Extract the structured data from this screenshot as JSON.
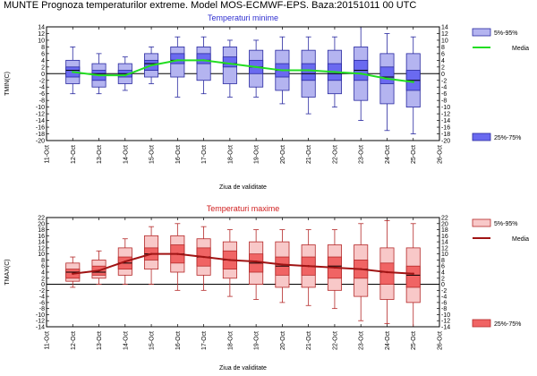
{
  "title": "MUNTE  Prognoza temperaturilor extreme.  Model MOS-ECMWF-EPS. Baza:20151011 00 UTC",
  "chart_data": [
    {
      "type": "box",
      "title": "Temperaturi minime",
      "ylabel": "TMIN(C)",
      "xlabel": "Ziua de validitate",
      "ylim": [
        -20,
        14
      ],
      "yticks": [
        14,
        12,
        10,
        8,
        6,
        4,
        2,
        0,
        -2,
        -4,
        -6,
        -8,
        -10,
        -12,
        -14,
        -16,
        -18,
        -20
      ],
      "categories": [
        "11-Oct",
        "12-Oct",
        "13-Oct",
        "14-Oct",
        "15-Oct",
        "16-Oct",
        "17-Oct",
        "18-Oct",
        "19-Oct",
        "20-Oct",
        "21-Oct",
        "22-Oct",
        "23-Oct",
        "24-Oct",
        "25-Oct",
        "26-Oct"
      ],
      "colors": {
        "box": "#6a6af0",
        "box_edge": "#2828a0",
        "light": "#b4b4f0",
        "mean": "#22dd22"
      },
      "legend": {
        "band_label": "5%-95%",
        "mean_label": "Media",
        "iqr_label": "25%-75%"
      },
      "days": [
        "12-Oct",
        "13-Oct",
        "14-Oct",
        "15-Oct",
        "16-Oct",
        "17-Oct",
        "18-Oct",
        "19-Oct",
        "20-Oct",
        "21-Oct",
        "22-Oct",
        "23-Oct",
        "24-Oct",
        "25-Oct"
      ],
      "whisker_low": [
        -6,
        -6,
        -5,
        -3,
        -7,
        -6,
        -7,
        -7,
        -9,
        -12,
        -10,
        -14,
        -17,
        -18
      ],
      "p5": [
        -3,
        -4,
        -3,
        -1,
        -1,
        -2,
        -3,
        -4,
        -5,
        -7,
        -6,
        -8,
        -9,
        -10
      ],
      "p25": [
        -1,
        -2,
        -1,
        1,
        3,
        3,
        2,
        0,
        -1,
        -2,
        -2,
        -2,
        -3,
        -5
      ],
      "median": [
        1,
        0,
        0,
        3,
        4,
        4,
        3,
        2,
        1,
        0,
        0,
        1,
        -1,
        -2
      ],
      "p75": [
        2,
        1,
        1,
        4,
        6,
        6,
        5,
        4,
        3,
        3,
        3,
        4,
        2,
        1
      ],
      "p95": [
        4,
        3,
        3,
        6,
        8,
        8,
        8,
        7,
        7,
        7,
        7,
        8,
        6,
        6
      ],
      "whisker_high": [
        8,
        6,
        5,
        8,
        11,
        11,
        10,
        10,
        11,
        11,
        11,
        14,
        12,
        11
      ],
      "mean": [
        0.5,
        -0.5,
        -0.5,
        2.5,
        4,
        4,
        3,
        2,
        1,
        1,
        0.5,
        0,
        -1.5,
        -2.5
      ]
    },
    {
      "type": "box",
      "title": "Temperaturi maxime",
      "ylabel": "TMAX(C)",
      "xlabel": "Ziua de validitate",
      "ylim": [
        -14,
        22
      ],
      "yticks": [
        22,
        20,
        18,
        16,
        14,
        12,
        10,
        8,
        6,
        4,
        2,
        0,
        -2,
        -4,
        -6,
        -8,
        -10,
        -12,
        -14
      ],
      "categories": [
        "11-Oct",
        "12-Oct",
        "13-Oct",
        "14-Oct",
        "15-Oct",
        "16-Oct",
        "17-Oct",
        "18-Oct",
        "19-Oct",
        "20-Oct",
        "21-Oct",
        "22-Oct",
        "23-Oct",
        "24-Oct",
        "25-Oct",
        "26-Oct"
      ],
      "colors": {
        "box": "#f06464",
        "box_edge": "#b42828",
        "light": "#f8c8c8",
        "mean": "#a01414"
      },
      "legend": {
        "band_label": "5%-95%",
        "mean_label": "Media",
        "iqr_label": "25%-75%"
      },
      "days": [
        "12-Oct",
        "13-Oct",
        "14-Oct",
        "15-Oct",
        "16-Oct",
        "17-Oct",
        "18-Oct",
        "19-Oct",
        "20-Oct",
        "21-Oct",
        "22-Oct",
        "23-Oct",
        "24-Oct",
        "25-Oct"
      ],
      "whisker_low": [
        -1,
        0,
        0,
        0,
        -2,
        -2,
        -4,
        -5,
        -6,
        -7,
        -8,
        -12,
        -13,
        -14
      ],
      "p5": [
        1,
        2,
        3,
        5,
        4,
        3,
        2,
        0,
        -1,
        -1,
        -2,
        -4,
        -5,
        -6
      ],
      "p25": [
        2,
        3,
        5,
        8,
        7,
        6,
        5,
        4,
        3,
        3,
        2,
        2,
        0,
        -1
      ],
      "median": [
        4,
        4,
        7,
        10,
        10,
        9,
        8,
        7,
        6,
        6,
        6,
        5,
        4,
        3
      ],
      "p75": [
        5,
        6,
        9,
        12,
        13,
        12,
        11,
        10,
        9,
        9,
        9,
        8,
        7,
        6
      ],
      "p95": [
        7,
        8,
        12,
        16,
        16,
        15,
        14,
        14,
        14,
        13,
        13,
        13,
        12,
        12
      ],
      "whisker_high": [
        9,
        11,
        15,
        19,
        20,
        19,
        18,
        18,
        18,
        18,
        18,
        20,
        21,
        20
      ],
      "mean": [
        3.5,
        4.5,
        7.5,
        10,
        10,
        9,
        8,
        7.5,
        6.5,
        6,
        5.5,
        5,
        4,
        3.5
      ]
    }
  ]
}
